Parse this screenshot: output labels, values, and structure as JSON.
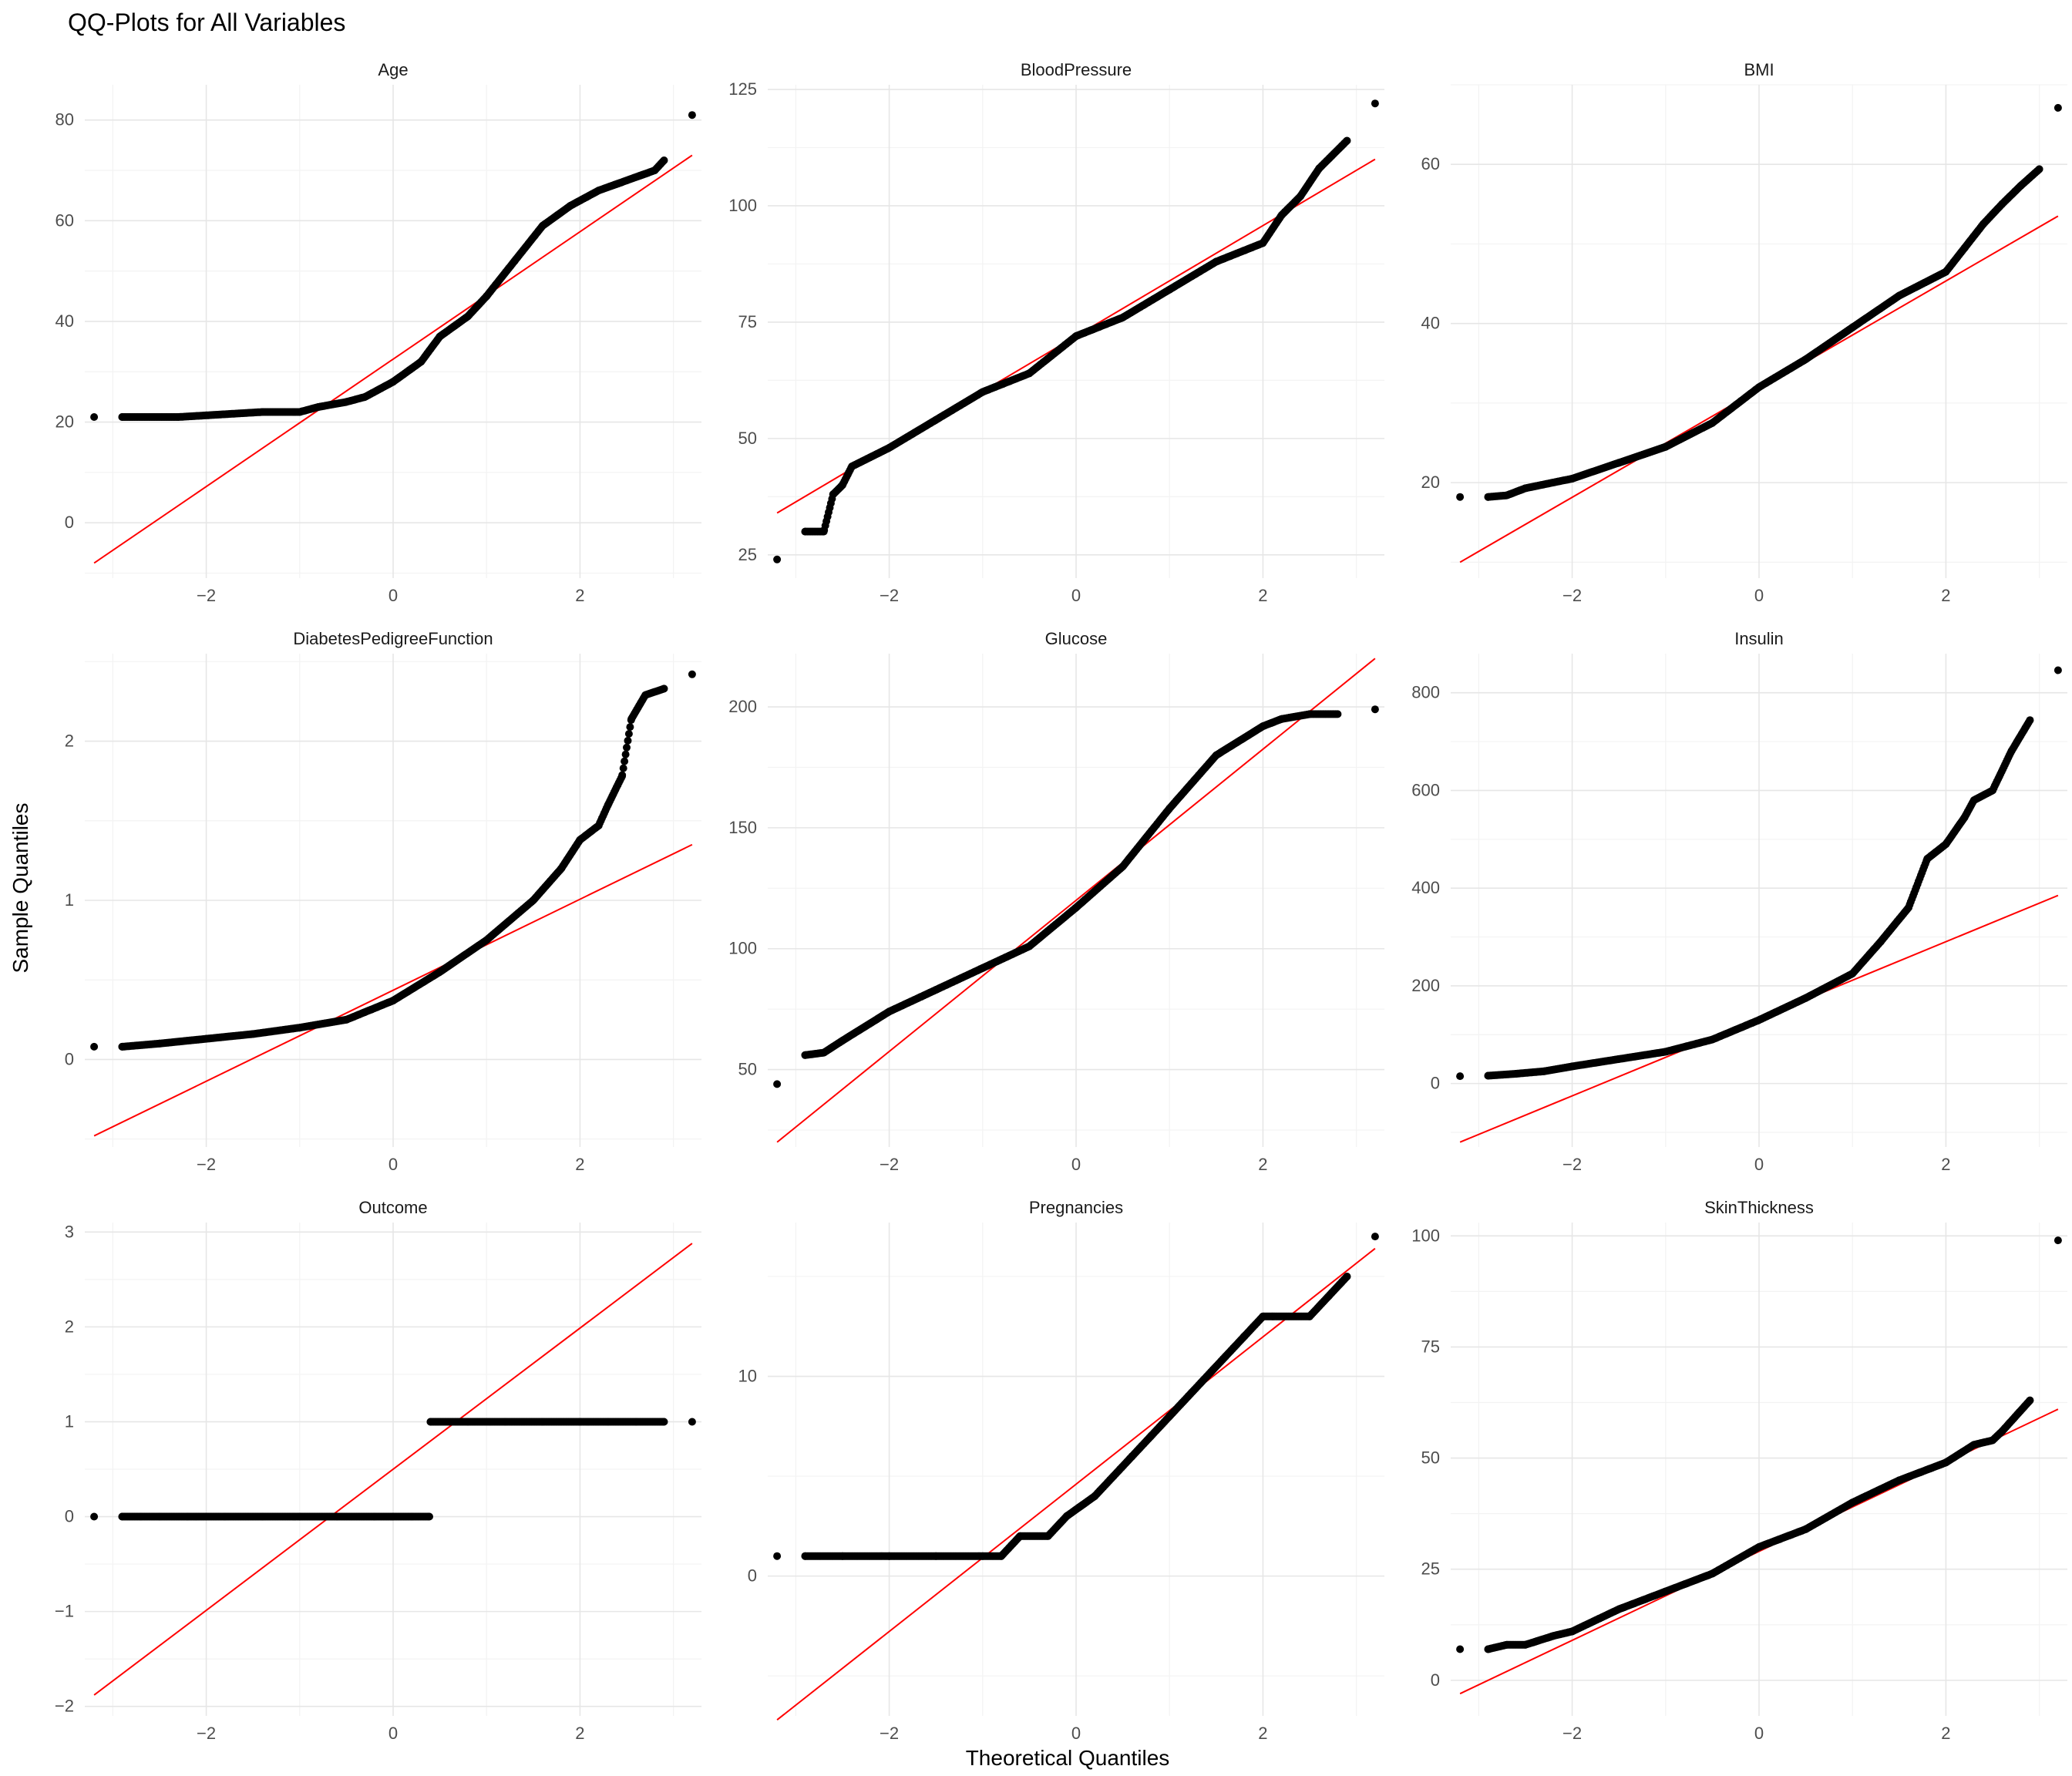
{
  "chart_data": {
    "type": "scatter",
    "title": "QQ-Plots for All Variables",
    "xlabel": "Theoretical Quantiles",
    "ylabel": "Sample Quantiles",
    "layout": "3x3 facet grid, free y scales",
    "grid": true,
    "point_color": "#000000",
    "reference_line_color": "#ff0000",
    "xlim": [
      -3.3,
      3.3
    ],
    "x_ticks": [
      -2,
      0,
      2
    ],
    "facets": [
      {
        "name": "Age",
        "ylim": [
          -11,
          87
        ],
        "y_ticks": [
          0,
          20,
          40,
          60,
          80
        ],
        "line": [
          [
            -3.2,
            -8
          ],
          [
            3.2,
            73
          ]
        ],
        "quantiles": [
          [
            -3.2,
            21
          ],
          [
            -2.9,
            21
          ],
          [
            -2.3,
            21
          ],
          [
            -1.4,
            22
          ],
          [
            -1.0,
            22
          ],
          [
            -0.8,
            23
          ],
          [
            -0.5,
            24
          ],
          [
            -0.3,
            25
          ],
          [
            0.0,
            28
          ],
          [
            0.3,
            32
          ],
          [
            0.5,
            37
          ],
          [
            0.8,
            41
          ],
          [
            1.0,
            45
          ],
          [
            1.3,
            52
          ],
          [
            1.6,
            59
          ],
          [
            1.9,
            63
          ],
          [
            2.2,
            66
          ],
          [
            2.5,
            68
          ],
          [
            2.8,
            70
          ],
          [
            2.9,
            72
          ],
          [
            3.2,
            81
          ]
        ]
      },
      {
        "name": "BloodPressure",
        "ylim": [
          20,
          126
        ],
        "y_ticks": [
          25,
          50,
          75,
          100,
          125
        ],
        "line": [
          [
            -3.2,
            34
          ],
          [
            3.2,
            110
          ]
        ],
        "quantiles": [
          [
            -3.2,
            24
          ],
          [
            -2.9,
            30
          ],
          [
            -2.7,
            30
          ],
          [
            -2.6,
            38
          ],
          [
            -2.5,
            40
          ],
          [
            -2.4,
            44
          ],
          [
            -2.0,
            48
          ],
          [
            -1.5,
            54
          ],
          [
            -1.0,
            60
          ],
          [
            -0.5,
            64
          ],
          [
            0.0,
            72
          ],
          [
            0.5,
            76
          ],
          [
            1.0,
            82
          ],
          [
            1.5,
            88
          ],
          [
            2.0,
            92
          ],
          [
            2.2,
            98
          ],
          [
            2.4,
            102
          ],
          [
            2.6,
            108
          ],
          [
            2.9,
            114
          ],
          [
            3.2,
            122
          ]
        ]
      },
      {
        "name": "BMI",
        "ylim": [
          8,
          70
        ],
        "y_ticks": [
          20,
          40,
          60
        ],
        "line": [
          [
            -3.2,
            10
          ],
          [
            3.2,
            53.5
          ]
        ],
        "quantiles": [
          [
            -3.2,
            18.2
          ],
          [
            -2.9,
            18.2
          ],
          [
            -2.7,
            18.4
          ],
          [
            -2.5,
            19.3
          ],
          [
            -2.0,
            20.5
          ],
          [
            -1.5,
            22.5
          ],
          [
            -1.0,
            24.5
          ],
          [
            -0.5,
            27.5
          ],
          [
            0.0,
            32
          ],
          [
            0.5,
            35.5
          ],
          [
            1.0,
            39.5
          ],
          [
            1.5,
            43.5
          ],
          [
            2.0,
            46.5
          ],
          [
            2.2,
            49.5
          ],
          [
            2.4,
            52.5
          ],
          [
            2.6,
            55
          ],
          [
            2.8,
            57.3
          ],
          [
            3.0,
            59.4
          ],
          [
            3.2,
            67.1
          ]
        ]
      },
      {
        "name": "DiabetesPedigreeFunction",
        "ylim": [
          -0.55,
          2.55
        ],
        "y_ticks": [
          0,
          1,
          2
        ],
        "line": [
          [
            -3.2,
            -0.48
          ],
          [
            3.2,
            1.35
          ]
        ],
        "quantiles": [
          [
            -3.2,
            0.08
          ],
          [
            -2.9,
            0.08
          ],
          [
            -2.5,
            0.1
          ],
          [
            -2.0,
            0.13
          ],
          [
            -1.5,
            0.16
          ],
          [
            -1.0,
            0.2
          ],
          [
            -0.5,
            0.25
          ],
          [
            0.0,
            0.37
          ],
          [
            0.5,
            0.55
          ],
          [
            1.0,
            0.75
          ],
          [
            1.5,
            1.0
          ],
          [
            1.8,
            1.2
          ],
          [
            2.0,
            1.38
          ],
          [
            2.2,
            1.47
          ],
          [
            2.3,
            1.6
          ],
          [
            2.45,
            1.78
          ],
          [
            2.55,
            2.14
          ],
          [
            2.7,
            2.29
          ],
          [
            2.9,
            2.33
          ],
          [
            3.2,
            2.42
          ]
        ]
      },
      {
        "name": "Glucose",
        "ylim": [
          18,
          222
        ],
        "y_ticks": [
          50,
          100,
          150,
          200
        ],
        "line": [
          [
            -3.2,
            20
          ],
          [
            3.2,
            220
          ]
        ],
        "quantiles": [
          [
            -3.2,
            44
          ],
          [
            -2.9,
            56
          ],
          [
            -2.7,
            57
          ],
          [
            -2.5,
            62
          ],
          [
            -2.0,
            74
          ],
          [
            -1.5,
            83
          ],
          [
            -1.0,
            92
          ],
          [
            -0.5,
            101
          ],
          [
            0.0,
            117
          ],
          [
            0.5,
            134
          ],
          [
            1.0,
            158
          ],
          [
            1.5,
            180
          ],
          [
            2.0,
            192
          ],
          [
            2.2,
            195
          ],
          [
            2.5,
            197
          ],
          [
            2.8,
            197
          ],
          [
            3.2,
            199
          ]
        ]
      },
      {
        "name": "Insulin",
        "ylim": [
          -130,
          880
        ],
        "y_ticks": [
          0,
          200,
          400,
          600,
          800
        ],
        "line": [
          [
            -3.2,
            -120
          ],
          [
            3.2,
            385
          ]
        ],
        "quantiles": [
          [
            -3.2,
            15
          ],
          [
            -2.9,
            16
          ],
          [
            -2.6,
            20
          ],
          [
            -2.3,
            25
          ],
          [
            -2.0,
            35
          ],
          [
            -1.5,
            50
          ],
          [
            -1.0,
            65
          ],
          [
            -0.5,
            90
          ],
          [
            0.0,
            130
          ],
          [
            0.5,
            175
          ],
          [
            1.0,
            225
          ],
          [
            1.3,
            290
          ],
          [
            1.6,
            360
          ],
          [
            1.8,
            460
          ],
          [
            2.0,
            490
          ],
          [
            2.2,
            545
          ],
          [
            2.3,
            580
          ],
          [
            2.5,
            600
          ],
          [
            2.7,
            680
          ],
          [
            2.9,
            744
          ],
          [
            3.2,
            846
          ]
        ]
      },
      {
        "name": "Outcome",
        "ylim": [
          -2.1,
          3.1
        ],
        "y_ticks": [
          -2,
          -1,
          0,
          1,
          2,
          3
        ],
        "line": [
          [
            -3.2,
            -1.88
          ],
          [
            3.2,
            2.88
          ]
        ],
        "quantiles": [
          [
            -3.2,
            0
          ],
          [
            -2.9,
            0
          ],
          [
            -2.7,
            0
          ],
          [
            -2.5,
            0
          ],
          [
            -2.2,
            0
          ],
          [
            -1.8,
            0
          ],
          [
            -1.4,
            0
          ],
          [
            -1.0,
            0
          ],
          [
            -0.6,
            0
          ],
          [
            -0.2,
            0
          ],
          [
            0.2,
            0
          ],
          [
            0.38,
            0
          ],
          [
            0.4,
            1
          ],
          [
            0.8,
            1
          ],
          [
            1.2,
            1
          ],
          [
            1.6,
            1
          ],
          [
            2.0,
            1
          ],
          [
            2.3,
            1
          ],
          [
            2.6,
            1
          ],
          [
            2.9,
            1
          ],
          [
            3.2,
            1
          ]
        ]
      },
      {
        "name": "Pregnancies",
        "ylim": [
          -7,
          17.7
        ],
        "y_ticks": [
          0,
          10
        ],
        "line": [
          [
            -3.2,
            -7.2
          ],
          [
            3.2,
            16.4
          ]
        ],
        "quantiles": [
          [
            -3.2,
            1
          ],
          [
            -2.9,
            1
          ],
          [
            -2.5,
            1
          ],
          [
            -2.0,
            1
          ],
          [
            -1.5,
            1
          ],
          [
            -1.0,
            1
          ],
          [
            -0.8,
            1
          ],
          [
            -0.6,
            2
          ],
          [
            -0.3,
            2
          ],
          [
            -0.1,
            3
          ],
          [
            0.2,
            4
          ],
          [
            0.4,
            5
          ],
          [
            0.6,
            6
          ],
          [
            0.8,
            7
          ],
          [
            1.0,
            8
          ],
          [
            1.2,
            9
          ],
          [
            1.4,
            10
          ],
          [
            1.6,
            11
          ],
          [
            1.8,
            12
          ],
          [
            2.0,
            13
          ],
          [
            2.5,
            13
          ],
          [
            2.7,
            14
          ],
          [
            2.9,
            15
          ],
          [
            3.2,
            17
          ]
        ]
      },
      {
        "name": "SkinThickness",
        "ylim": [
          -8,
          103
        ],
        "y_ticks": [
          0,
          25,
          50,
          75,
          100
        ],
        "line": [
          [
            -3.2,
            -3
          ],
          [
            3.2,
            61
          ]
        ],
        "quantiles": [
          [
            -3.2,
            7
          ],
          [
            -2.9,
            7
          ],
          [
            -2.7,
            8
          ],
          [
            -2.5,
            8
          ],
          [
            -2.2,
            10
          ],
          [
            -2.0,
            11
          ],
          [
            -1.5,
            16
          ],
          [
            -1.0,
            20
          ],
          [
            -0.5,
            24
          ],
          [
            0.0,
            30
          ],
          [
            0.5,
            34
          ],
          [
            1.0,
            40
          ],
          [
            1.5,
            45
          ],
          [
            2.0,
            49
          ],
          [
            2.3,
            53
          ],
          [
            2.5,
            54
          ],
          [
            2.6,
            56
          ],
          [
            2.9,
            63
          ],
          [
            3.2,
            99
          ]
        ]
      }
    ]
  }
}
